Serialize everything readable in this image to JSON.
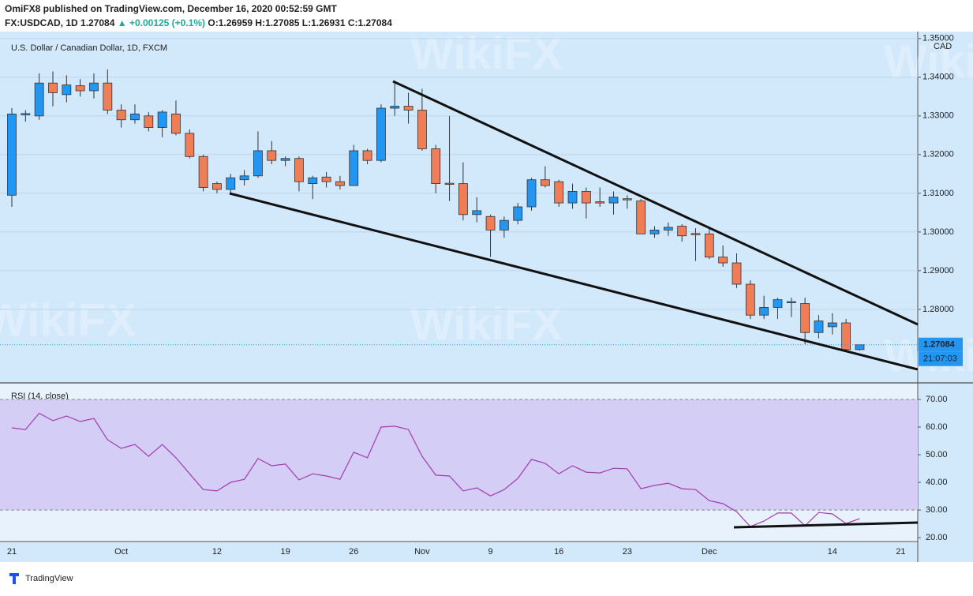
{
  "header": {
    "published": "OmiFX8 published on TradingView.com, December 16, 2020 00:52:59 GMT",
    "symbol": "FX:USDCAD, 1D",
    "last": "1.27084",
    "change": "▲ +0.00125 (+0.1%)",
    "ohlc": "O:1.26959 H:1.27085 L:1.26931 C:1.27084"
  },
  "watermark": "WikiFX",
  "footer": "TradingView",
  "chart_data": [
    {
      "type": "candlestick",
      "title": "U.S. Dollar / Canadian Dollar, 1D, FXCM",
      "currency": "CAD",
      "categories": [
        "21",
        null,
        null,
        null,
        null,
        null,
        null,
        null,
        "Oct",
        null,
        null,
        null,
        null,
        null,
        null,
        "12",
        null,
        null,
        null,
        null,
        "19",
        null,
        null,
        null,
        null,
        "26",
        null,
        null,
        null,
        null,
        "Nov",
        null,
        null,
        null,
        null,
        "9",
        null,
        null,
        null,
        null,
        "16",
        null,
        null,
        null,
        null,
        "23",
        null,
        null,
        null,
        null,
        null,
        "Dec",
        null,
        null,
        null,
        null,
        null,
        null,
        null,
        null,
        "14",
        null,
        null
      ],
      "future_categories": [
        "21"
      ],
      "open": [
        1.3095,
        1.3303,
        1.33,
        1.3385,
        1.3355,
        1.3378,
        1.3365,
        1.3385,
        1.3315,
        1.329,
        1.33,
        1.327,
        1.3305,
        1.3255,
        1.3195,
        1.3125,
        1.311,
        1.3135,
        1.3145,
        1.321,
        1.3185,
        1.319,
        1.3125,
        1.3142,
        1.313,
        1.312,
        1.321,
        1.3185,
        1.332,
        1.3325,
        1.3315,
        1.3215,
        1.3126,
        1.3125,
        1.3045,
        1.304,
        1.3005,
        1.303,
        1.3065,
        1.3135,
        1.313,
        1.3075,
        1.3105,
        1.3078,
        1.3075,
        1.3086,
        1.308,
        1.2995,
        1.3005,
        1.3015,
        1.2996,
        1.2995,
        1.2935,
        1.292,
        1.2865,
        1.2785,
        1.2805,
        1.2817,
        1.2815,
        1.274,
        1.2755,
        1.2765,
        1.26959
      ],
      "high": [
        1.332,
        1.3315,
        1.341,
        1.3415,
        1.3405,
        1.3395,
        1.341,
        1.342,
        1.333,
        1.333,
        1.331,
        1.3315,
        1.334,
        1.3265,
        1.32,
        1.313,
        1.315,
        1.316,
        1.326,
        1.3235,
        1.3195,
        1.3195,
        1.3145,
        1.3155,
        1.3145,
        1.3225,
        1.3215,
        1.333,
        1.339,
        1.336,
        1.337,
        1.3225,
        1.33,
        1.318,
        1.309,
        1.3045,
        1.304,
        1.3075,
        1.314,
        1.317,
        1.3135,
        1.3125,
        1.3115,
        1.3115,
        1.3105,
        1.3095,
        1.3085,
        1.3015,
        1.3025,
        1.302,
        1.301,
        1.301,
        1.2965,
        1.2945,
        1.2875,
        1.2835,
        1.283,
        1.283,
        1.283,
        1.2785,
        1.279,
        1.2775,
        1.27085
      ],
      "low": [
        1.3065,
        1.3285,
        1.329,
        1.3325,
        1.3335,
        1.335,
        1.3345,
        1.3305,
        1.327,
        1.328,
        1.326,
        1.3245,
        1.325,
        1.319,
        1.3105,
        1.31,
        1.31,
        1.312,
        1.314,
        1.3175,
        1.317,
        1.3105,
        1.3085,
        1.3115,
        1.311,
        1.312,
        1.3175,
        1.318,
        1.33,
        1.328,
        1.321,
        1.31,
        1.308,
        1.303,
        1.3025,
        1.2935,
        1.2985,
        1.302,
        1.3055,
        1.3115,
        1.3065,
        1.306,
        1.3035,
        1.3065,
        1.3045,
        1.306,
        1.2995,
        1.2985,
        1.299,
        1.2975,
        1.2925,
        1.293,
        1.291,
        1.2855,
        1.2775,
        1.2775,
        1.2775,
        1.278,
        1.271,
        1.2725,
        1.2735,
        1.269,
        1.26931
      ],
      "close": [
        1.3305,
        1.3306,
        1.3385,
        1.336,
        1.338,
        1.3365,
        1.3385,
        1.3315,
        1.329,
        1.3305,
        1.327,
        1.331,
        1.3255,
        1.3195,
        1.3115,
        1.311,
        1.314,
        1.3145,
        1.321,
        1.3185,
        1.319,
        1.313,
        1.314,
        1.313,
        1.312,
        1.321,
        1.3185,
        1.332,
        1.3325,
        1.3315,
        1.3215,
        1.3125,
        1.3125,
        1.3045,
        1.3055,
        1.3005,
        1.303,
        1.3065,
        1.3135,
        1.312,
        1.3075,
        1.3105,
        1.3075,
        1.3075,
        1.309,
        1.3084,
        1.2995,
        1.3005,
        1.3012,
        1.299,
        1.2994,
        1.2935,
        1.292,
        1.2865,
        1.2785,
        1.2805,
        1.2825,
        1.282,
        1.274,
        1.277,
        1.2765,
        1.2696,
        1.27084
      ],
      "last_label": "1.27084",
      "countdown": "21:07:03",
      "up_color": "#2196f3",
      "down_color": "#ef7d55",
      "ylim": [
        1.2612,
        1.3518
      ],
      "yticks": [
        {
          "value": 1.28,
          "label": "1.28000"
        },
        {
          "value": 1.29,
          "label": "1.29000"
        },
        {
          "value": 1.3,
          "label": "1.30000"
        },
        {
          "value": 1.31,
          "label": "1.31000"
        },
        {
          "value": 1.32,
          "label": "1.32000"
        },
        {
          "value": 1.33,
          "label": "1.33000"
        },
        {
          "value": 1.34,
          "label": "1.34000"
        },
        {
          "value": 1.35,
          "label": "1.35000"
        }
      ],
      "grid": true
    },
    {
      "type": "line",
      "title": "RSI (14, close)",
      "color": "#a23bb0",
      "values": [
        59.7,
        59.1,
        65,
        62.3,
        64,
        62,
        63.1,
        55.4,
        52.3,
        53.7,
        49.4,
        53.7,
        48.9,
        43.1,
        37.4,
        36.9,
        40,
        41.1,
        48.6,
        46,
        46.6,
        40.9,
        43.1,
        42.3,
        41.1,
        50.9,
        48.9,
        60,
        60.3,
        59.1,
        49.4,
        42.6,
        42.3,
        36.9,
        38,
        35.1,
        37.4,
        41.4,
        48.3,
        46.9,
        43.1,
        46,
        43.7,
        43.4,
        45.1,
        44.9,
        37.7,
        38.9,
        39.7,
        37.7,
        37.4,
        33.4,
        32.3,
        29.4,
        24,
        26,
        28.9,
        28.9,
        24.3,
        29.1,
        28.6,
        25.1,
        26.9
      ],
      "band": [
        30,
        70
      ],
      "ylim": [
        18.6,
        75.7
      ],
      "yticks": [
        {
          "value": 20,
          "label": "20.00"
        },
        {
          "value": 30,
          "label": "30.00"
        },
        {
          "value": 40,
          "label": "40.00"
        },
        {
          "value": 50,
          "label": "50.00"
        },
        {
          "value": 60,
          "label": "60.00"
        },
        {
          "value": 70,
          "label": "70.00"
        }
      ]
    }
  ]
}
